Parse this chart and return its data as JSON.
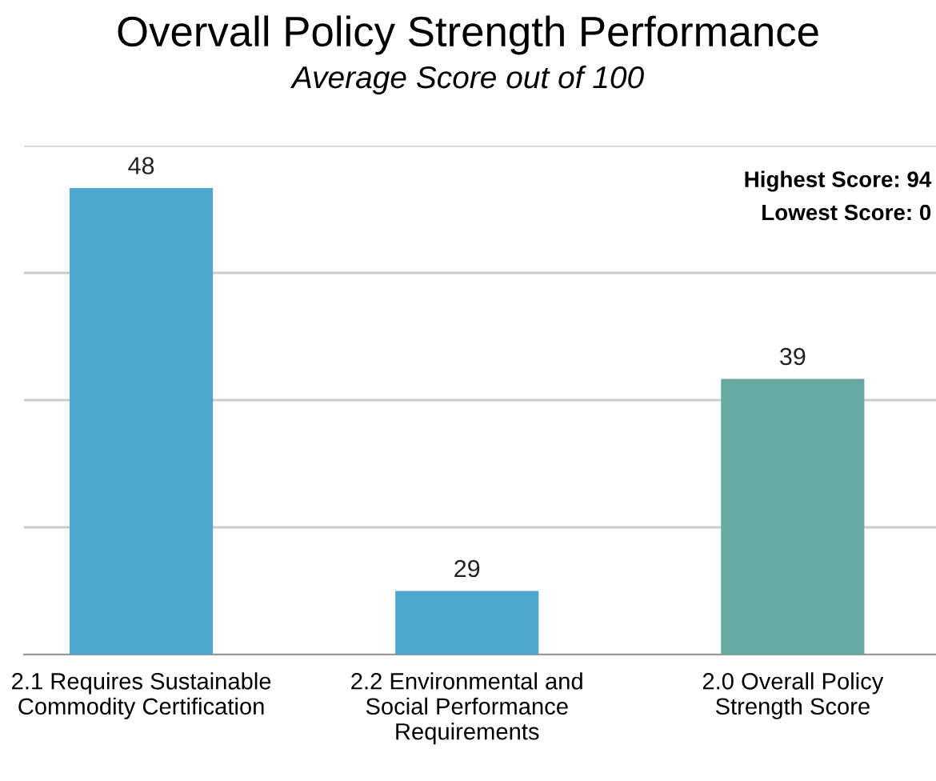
{
  "chart_data": {
    "type": "bar",
    "title": "Overvall Policy Strength Performance",
    "subtitle": "Average Score out of 100",
    "categories": [
      "2.1 Requires Sustainable Commodity Certification",
      "2.2 Environmental and Social Performance Requirements",
      "2.0 Overall Policy Strength Score"
    ],
    "values": [
      48,
      29,
      39
    ],
    "colors": [
      "#4fa6cc",
      "#4fa6cc",
      "#65a9a2"
    ],
    "data_labels": true,
    "ylim": [
      26,
      50
    ],
    "yticks": [
      {
        "value": 26,
        "label": null
      },
      {
        "value": 32,
        "label": null
      },
      {
        "value": 38,
        "label": null
      },
      {
        "value": 44,
        "label": null
      },
      {
        "value": 50,
        "label": null
      }
    ],
    "tick_labels": "x",
    "grid": "y",
    "annotations": [
      "Highest Score: 94",
      "Lowest Score: 0"
    ]
  }
}
